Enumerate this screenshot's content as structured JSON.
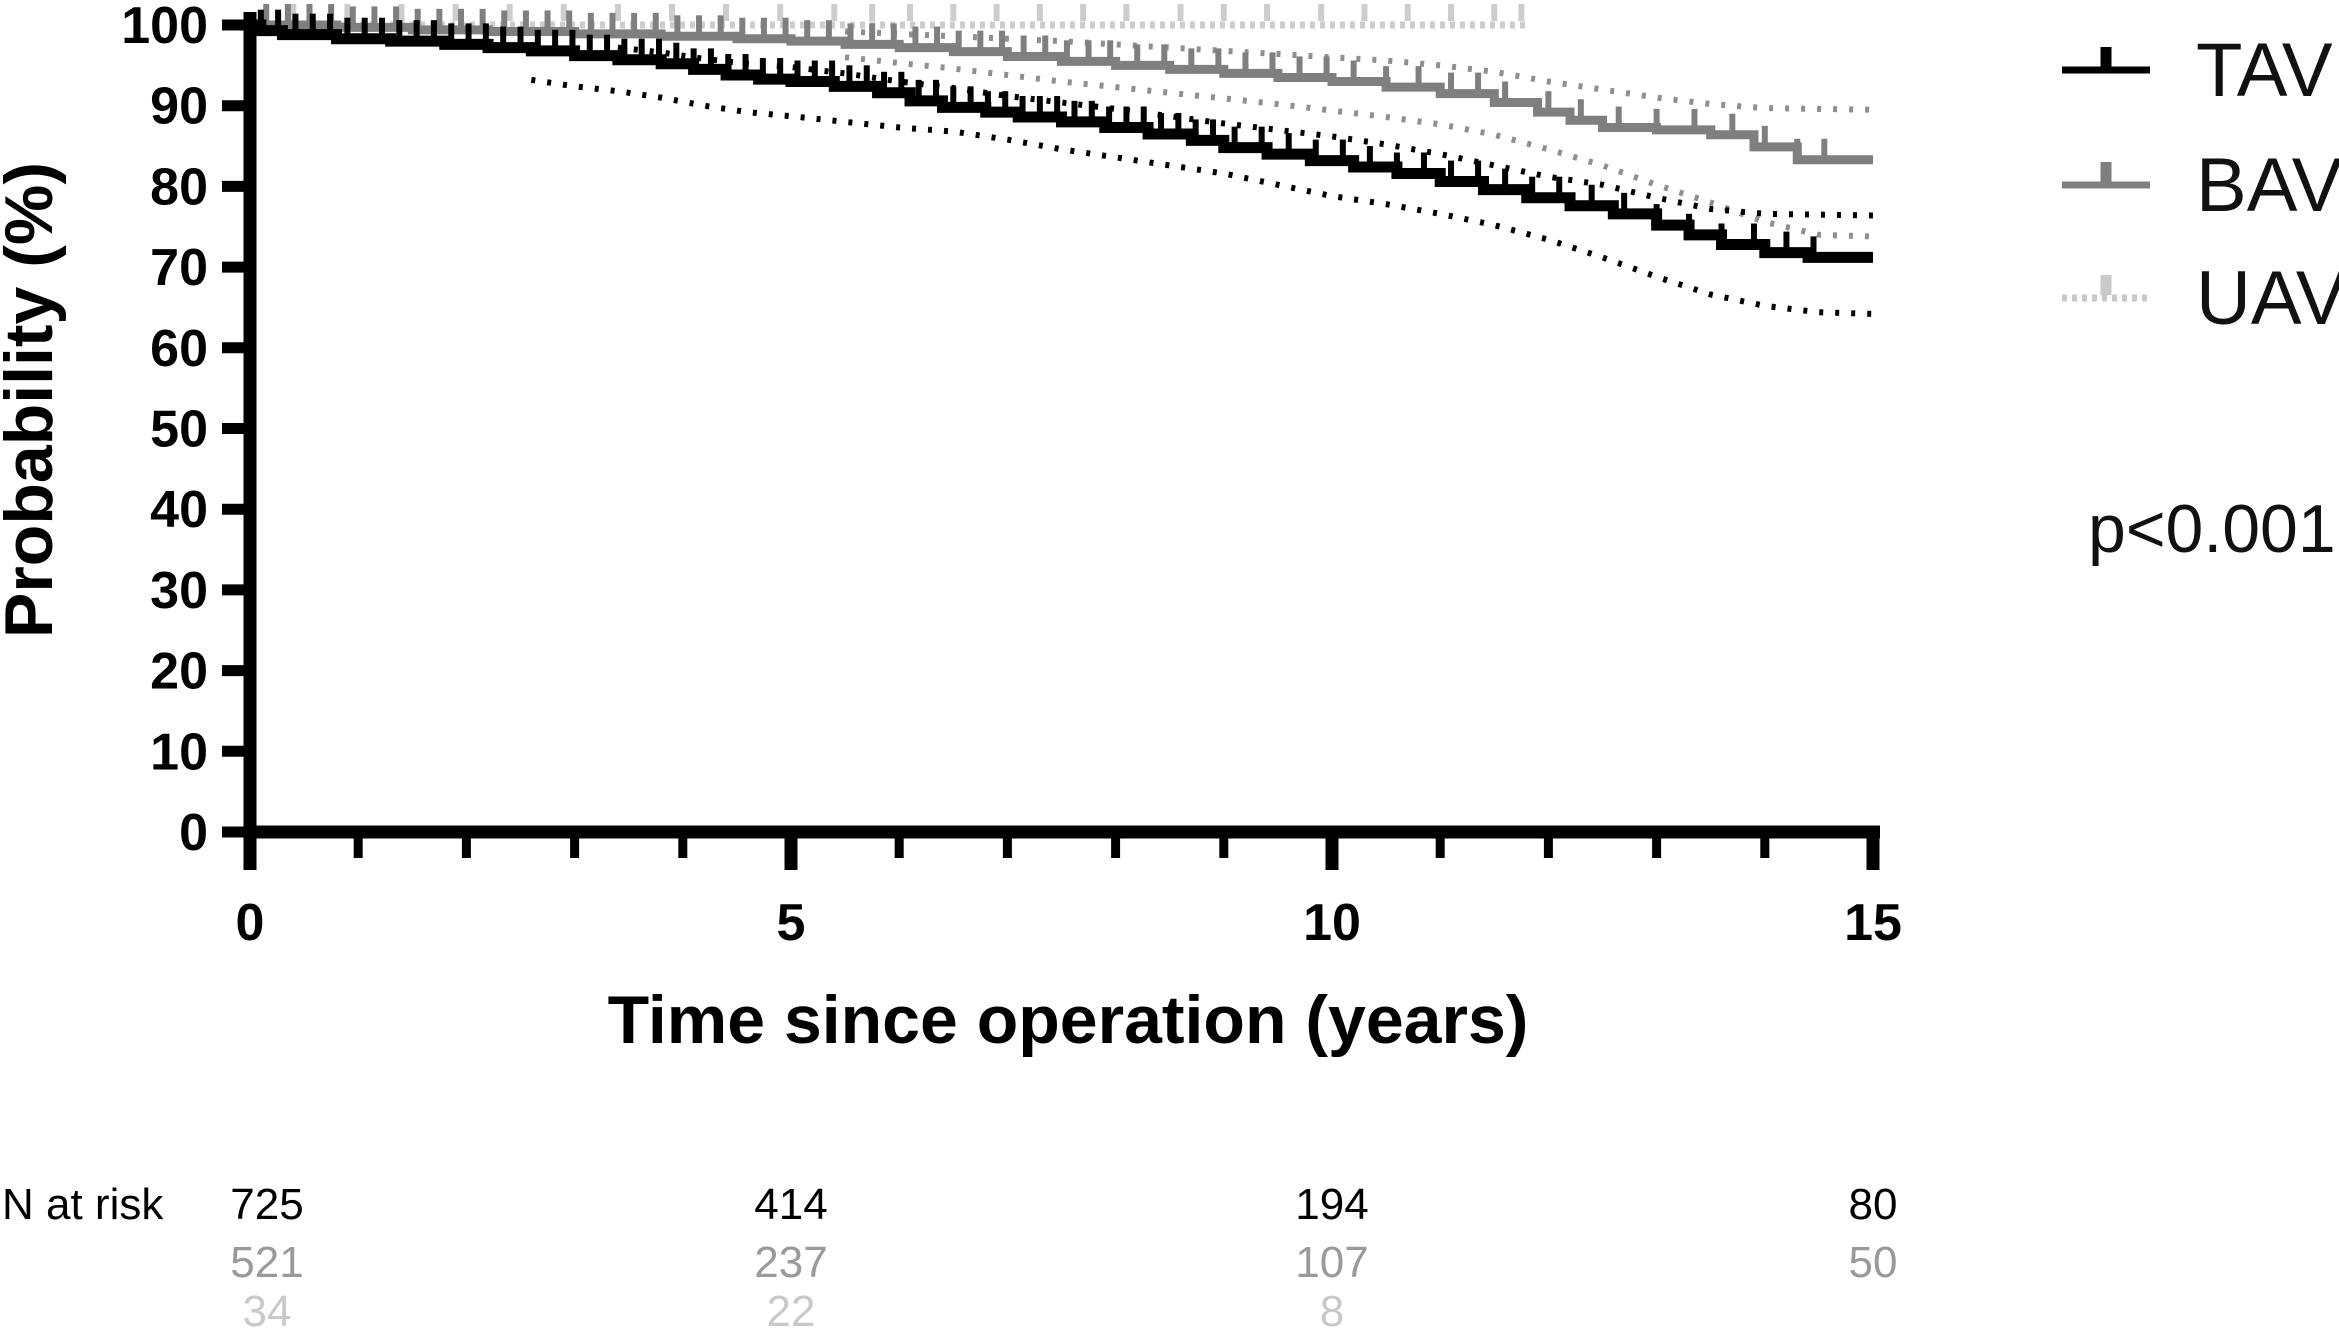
{
  "figure": {
    "background": "#ffffff",
    "p_value": "p<0.001",
    "x_axis": {
      "label": "Time since operation (years)",
      "range": [
        0,
        15
      ],
      "major_ticks": [
        0,
        5,
        10,
        15
      ],
      "minor_ticks": [
        1,
        2,
        3,
        4,
        6,
        7,
        8,
        9,
        11,
        12,
        13,
        14
      ]
    },
    "y_axis": {
      "label": "Probability (%)",
      "range": [
        0,
        100
      ],
      "ticks": [
        0,
        10,
        20,
        30,
        40,
        50,
        60,
        70,
        80,
        90,
        100
      ]
    },
    "legend": [
      {
        "label": "TAV",
        "color": "#000000",
        "style": "solid"
      },
      {
        "label": "BAV",
        "color": "#7f7f7f",
        "style": "solid"
      },
      {
        "label": "UAV",
        "color": "#c9c9c9",
        "style": "dotted"
      }
    ],
    "n_at_risk": {
      "label": "N at risk",
      "times": [
        0,
        5,
        10,
        15
      ],
      "rows": [
        {
          "group": "TAV",
          "color": "#000000",
          "values": [
            "725",
            "414",
            "194",
            "80"
          ]
        },
        {
          "group": "BAV",
          "color": "#9a9a9a",
          "values": [
            "521",
            "237",
            "107",
            "50"
          ]
        },
        {
          "group": "UAV",
          "color": "#c9c9c9",
          "values": [
            "34",
            "22",
            "8",
            ""
          ]
        }
      ]
    }
  },
  "chart_data": {
    "type": "line",
    "subtype": "kaplan-meier-step",
    "title": "",
    "xlabel": "Time since operation (years)",
    "ylabel": "Probability (%)",
    "xlim": [
      0,
      15
    ],
    "ylim": [
      0,
      100
    ],
    "grid": false,
    "legend_position": "right",
    "annotation": "p<0.001",
    "series": [
      {
        "name": "UAV",
        "color": "#cdcdcd",
        "dash": "dotted",
        "width": 7,
        "points": [
          [
            0,
            100
          ],
          [
            11.8,
            100
          ]
        ],
        "censor_times": [
          0.4,
          0.9,
          1.4,
          1.9,
          2.4,
          2.9,
          3.4,
          3.9,
          4.4,
          4.9,
          5.4,
          5.75,
          6.1,
          6.5,
          6.9,
          7.3,
          7.7,
          8.1,
          8.6,
          9.0,
          9.4,
          9.9,
          10.3,
          10.7,
          11.1,
          11.5,
          11.75
        ]
      },
      {
        "name": "BAV",
        "color": "#7f7f7f",
        "dash": "solid",
        "width": 9,
        "points": [
          [
            0,
            100
          ],
          [
            0.8,
            99.7
          ],
          [
            1.5,
            99.4
          ],
          [
            2.2,
            99.2
          ],
          [
            3.0,
            98.9
          ],
          [
            3.8,
            98.6
          ],
          [
            4.5,
            98.3
          ],
          [
            5.0,
            98.0
          ],
          [
            5.5,
            97.6
          ],
          [
            6.0,
            97.2
          ],
          [
            6.5,
            96.7
          ],
          [
            7.0,
            96.1
          ],
          [
            7.5,
            95.5
          ],
          [
            8.0,
            95.0
          ],
          [
            8.5,
            94.5
          ],
          [
            9.0,
            94.0
          ],
          [
            9.5,
            93.5
          ],
          [
            10.0,
            93.0
          ],
          [
            10.5,
            92.3
          ],
          [
            11.0,
            91.5
          ],
          [
            11.5,
            90.4
          ],
          [
            11.9,
            89.2
          ],
          [
            12.2,
            88.2
          ],
          [
            12.5,
            87.3
          ],
          [
            13.0,
            87.0
          ],
          [
            13.5,
            86.4
          ],
          [
            13.9,
            84.9
          ],
          [
            14.3,
            83.3
          ],
          [
            15,
            83.3
          ]
        ],
        "ci_upper": [
          [
            5.5,
            99.2
          ],
          [
            6.5,
            98.6
          ],
          [
            7.5,
            98.0
          ],
          [
            8.5,
            97.2
          ],
          [
            9.5,
            96.4
          ],
          [
            10.5,
            95.6
          ],
          [
            11.0,
            95.0
          ],
          [
            11.5,
            94.2
          ],
          [
            12.0,
            93.0
          ],
          [
            12.5,
            92.0
          ],
          [
            13.0,
            91.0
          ],
          [
            13.5,
            90.2
          ],
          [
            14.0,
            89.7
          ],
          [
            15,
            89.5
          ]
        ],
        "ci_lower": [
          [
            5.5,
            96.0
          ],
          [
            6.5,
            94.6
          ],
          [
            7.5,
            93.0
          ],
          [
            8.5,
            91.6
          ],
          [
            9.5,
            90.2
          ],
          [
            10.5,
            88.6
          ],
          [
            11.0,
            87.7
          ],
          [
            11.5,
            86.4
          ],
          [
            12.0,
            84.6
          ],
          [
            12.5,
            82.6
          ],
          [
            13.0,
            80.2
          ],
          [
            13.5,
            78.0
          ],
          [
            14.0,
            75.6
          ],
          [
            14.5,
            74.0
          ],
          [
            15,
            73.8
          ]
        ],
        "ci_color": "#8f8f8f",
        "censor_times": [
          0.15,
          0.35,
          0.55,
          0.75,
          0.95,
          1.15,
          1.35,
          1.55,
          1.75,
          1.95,
          2.15,
          2.35,
          2.55,
          2.75,
          2.95,
          3.15,
          3.35,
          3.55,
          3.75,
          3.95,
          4.15,
          4.35,
          4.55,
          4.75,
          4.95,
          5.15,
          5.35,
          5.55,
          5.75,
          5.95,
          6.15,
          6.35,
          6.55,
          6.75,
          6.95,
          7.15,
          7.35,
          7.55,
          7.75,
          7.95,
          8.2,
          8.45,
          8.7,
          8.95,
          9.2,
          9.45,
          9.7,
          9.95,
          10.2,
          10.5,
          10.8,
          11.1,
          11.35,
          11.6,
          12.0,
          12.3,
          12.65,
          13.0,
          13.35,
          13.7,
          14.0,
          14.3,
          14.55
        ]
      },
      {
        "name": "TAV",
        "color": "#000000",
        "dash": "solid",
        "width": 11,
        "points": [
          [
            0,
            100
          ],
          [
            0.1,
            99.3
          ],
          [
            0.3,
            98.8
          ],
          [
            0.8,
            98.3
          ],
          [
            1.3,
            98.0
          ],
          [
            1.8,
            97.6
          ],
          [
            2.2,
            97.2
          ],
          [
            2.6,
            96.8
          ],
          [
            3.0,
            96.2
          ],
          [
            3.4,
            95.7
          ],
          [
            3.8,
            95.2
          ],
          [
            4.1,
            94.5
          ],
          [
            4.4,
            93.8
          ],
          [
            4.7,
            93.3
          ],
          [
            5.0,
            93.0
          ],
          [
            5.4,
            92.4
          ],
          [
            5.8,
            91.6
          ],
          [
            6.1,
            90.6
          ],
          [
            6.4,
            89.8
          ],
          [
            6.8,
            89.2
          ],
          [
            7.1,
            88.6
          ],
          [
            7.5,
            88.0
          ],
          [
            7.9,
            87.3
          ],
          [
            8.3,
            86.5
          ],
          [
            8.7,
            85.7
          ],
          [
            9.0,
            84.8
          ],
          [
            9.4,
            84.0
          ],
          [
            9.8,
            83.2
          ],
          [
            10.2,
            82.4
          ],
          [
            10.6,
            81.6
          ],
          [
            11.0,
            80.6
          ],
          [
            11.4,
            79.6
          ],
          [
            11.8,
            78.6
          ],
          [
            12.2,
            77.6
          ],
          [
            12.6,
            76.6
          ],
          [
            13.0,
            75.2
          ],
          [
            13.3,
            74.0
          ],
          [
            13.6,
            72.8
          ],
          [
            14.0,
            71.8
          ],
          [
            14.4,
            71.2
          ],
          [
            15,
            71.2
          ]
        ],
        "ci_upper": [
          [
            3.4,
            97.2
          ],
          [
            3.8,
            96.6
          ],
          [
            4.2,
            95.8
          ],
          [
            4.6,
            95.2
          ],
          [
            5.0,
            94.8
          ],
          [
            5.5,
            94.0
          ],
          [
            6.0,
            93.0
          ],
          [
            6.5,
            92.2
          ],
          [
            7.0,
            91.2
          ],
          [
            7.5,
            90.4
          ],
          [
            8.0,
            89.6
          ],
          [
            8.5,
            88.7
          ],
          [
            9.0,
            87.8
          ],
          [
            9.5,
            87.0
          ],
          [
            10.0,
            86.2
          ],
          [
            10.5,
            85.2
          ],
          [
            11.0,
            84.0
          ],
          [
            11.5,
            82.6
          ],
          [
            12.0,
            81.2
          ],
          [
            12.5,
            80.2
          ],
          [
            13.0,
            78.6
          ],
          [
            13.5,
            77.2
          ],
          [
            14.0,
            76.6
          ],
          [
            15,
            76.4
          ]
        ],
        "ci_lower": [
          [
            2.6,
            93.2
          ],
          [
            3.0,
            92.4
          ],
          [
            3.4,
            91.8
          ],
          [
            3.8,
            91.0
          ],
          [
            4.2,
            90.0
          ],
          [
            4.6,
            89.2
          ],
          [
            5.0,
            88.7
          ],
          [
            5.5,
            88.0
          ],
          [
            6.0,
            87.3
          ],
          [
            6.5,
            86.8
          ],
          [
            7.0,
            85.8
          ],
          [
            7.5,
            84.6
          ],
          [
            8.0,
            83.6
          ],
          [
            8.5,
            82.6
          ],
          [
            9.0,
            81.6
          ],
          [
            9.5,
            80.2
          ],
          [
            10.0,
            78.8
          ],
          [
            10.5,
            77.8
          ],
          [
            11.0,
            76.6
          ],
          [
            11.5,
            75.2
          ],
          [
            12.0,
            73.4
          ],
          [
            12.5,
            71.2
          ],
          [
            13.0,
            68.8
          ],
          [
            13.5,
            66.6
          ],
          [
            14.0,
            65.2
          ],
          [
            14.5,
            64.4
          ],
          [
            15,
            64.2
          ]
        ],
        "ci_color": "#000000",
        "censor_times": [
          0.1,
          0.26,
          0.42,
          0.58,
          0.74,
          0.9,
          1.06,
          1.22,
          1.38,
          1.54,
          1.7,
          1.86,
          2.02,
          2.18,
          2.34,
          2.5,
          2.66,
          2.82,
          2.98,
          3.14,
          3.3,
          3.46,
          3.62,
          3.78,
          3.94,
          4.1,
          4.26,
          4.42,
          4.58,
          4.74,
          4.9,
          5.06,
          5.22,
          5.38,
          5.54,
          5.7,
          5.86,
          6.02,
          6.18,
          6.34,
          6.5,
          6.66,
          6.82,
          6.98,
          7.14,
          7.3,
          7.46,
          7.62,
          7.78,
          7.94,
          8.1,
          8.26,
          8.42,
          8.58,
          8.74,
          8.9,
          9.1,
          9.35,
          9.6,
          9.85,
          10.1,
          10.35,
          10.6,
          10.85,
          11.1,
          11.35,
          11.6,
          11.85,
          12.1,
          12.4,
          12.7,
          13.0,
          13.3,
          13.6,
          13.9,
          14.2,
          14.45
        ]
      }
    ],
    "n_at_risk": {
      "times": [
        0,
        5,
        10,
        15
      ],
      "TAV": [
        725,
        414,
        194,
        80
      ],
      "BAV": [
        521,
        237,
        107,
        50
      ],
      "UAV": [
        34,
        22,
        8,
        null
      ]
    }
  }
}
